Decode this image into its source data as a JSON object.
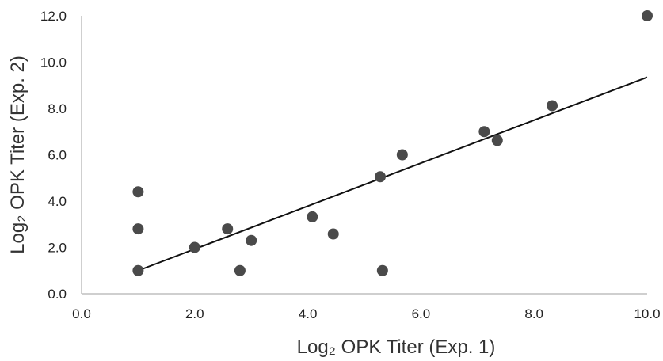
{
  "chart_data": {
    "type": "scatter",
    "xlabel": "Log₂ OPK Titer (Exp. 1)",
    "ylabel": "Log₂ OPK Titer (Exp. 2)",
    "xlim": [
      0,
      10
    ],
    "ylim": [
      0,
      12
    ],
    "x_ticks": [
      "0.0",
      "2.0",
      "4.0",
      "6.0",
      "8.0",
      "10.0"
    ],
    "y_ticks": [
      "0.0",
      "2.0",
      "4.0",
      "6.0",
      "8.0",
      "10.0",
      "12.0"
    ],
    "grid": false,
    "legend": "none",
    "marker_color": "#4a4a4a",
    "trendline": {
      "type": "linear",
      "from": [
        1.0,
        1.0
      ],
      "to": [
        10.0,
        9.35
      ]
    },
    "points": [
      {
        "x": 1.0,
        "y": 1.0
      },
      {
        "x": 1.0,
        "y": 2.8
      },
      {
        "x": 1.0,
        "y": 4.4
      },
      {
        "x": 2.0,
        "y": 2.0
      },
      {
        "x": 2.58,
        "y": 2.8
      },
      {
        "x": 2.8,
        "y": 1.0
      },
      {
        "x": 3.0,
        "y": 2.3
      },
      {
        "x": 4.08,
        "y": 3.32
      },
      {
        "x": 4.45,
        "y": 2.58
      },
      {
        "x": 5.28,
        "y": 5.05
      },
      {
        "x": 5.32,
        "y": 1.0
      },
      {
        "x": 5.67,
        "y": 6.0
      },
      {
        "x": 7.12,
        "y": 7.0
      },
      {
        "x": 7.35,
        "y": 6.62
      },
      {
        "x": 8.32,
        "y": 8.12
      },
      {
        "x": 10.0,
        "y": 12.0
      }
    ]
  }
}
